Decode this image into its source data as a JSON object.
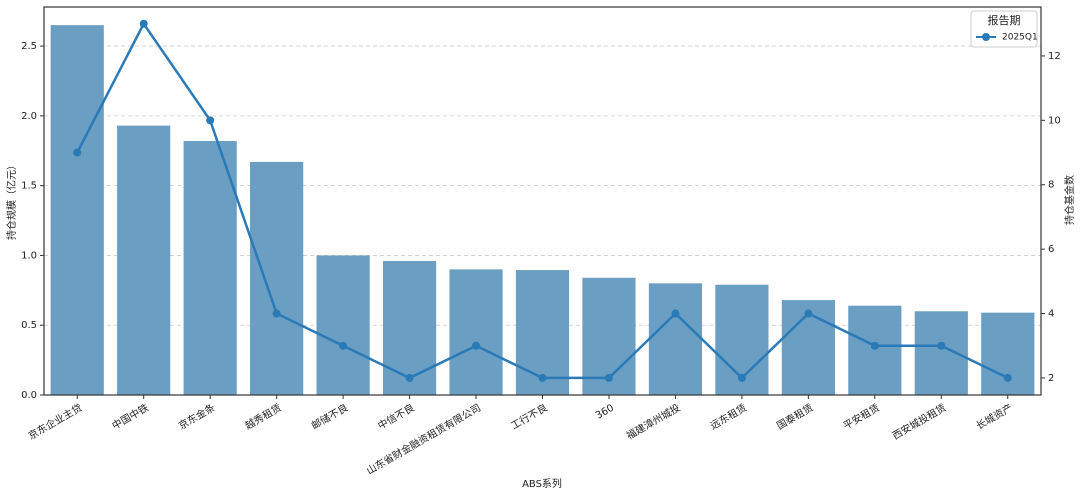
{
  "chart_data": {
    "type": "bar",
    "x_label": "ABS系列",
    "y_label": "持仓规模（亿元）",
    "y2_label": "持仓基金数",
    "legend_title": "报告期",
    "legend": "upper right",
    "grid": true,
    "categories": [
      "京东企业主贷",
      "中国中铁",
      "京东金条",
      "越秀租赁",
      "邮储不良",
      "中信不良",
      "山东省财金融资租赁有限公司",
      "工行不良",
      "360",
      "福建漳州城投",
      "远东租赁",
      "国泰租赁",
      "平安租赁",
      "西安城投租赁",
      "长城资产"
    ],
    "series": [
      {
        "color": "#6a9ec2",
        "values": [
          2.65,
          1.93,
          1.82,
          1.67,
          1.0,
          0.96,
          0.9,
          0.895,
          0.84,
          0.8,
          0.79,
          0.68,
          0.64,
          0.6,
          0.59
        ]
      },
      {
        "name": "2025Q1",
        "color": "#2a7ab8",
        "axis": "y2",
        "values": [
          9,
          13,
          10,
          4,
          3,
          2,
          3,
          2,
          2,
          4,
          2,
          4,
          3,
          3,
          2
        ]
      }
    ],
    "ylim": [
      0,
      2.78
    ],
    "yticks": [
      {
        "value": 0,
        "label": "0.0"
      },
      {
        "value": 0.5,
        "label": "0.5"
      },
      {
        "value": 1,
        "label": "1.0"
      },
      {
        "value": 1.5,
        "label": "1.5"
      },
      {
        "value": 2,
        "label": "2.0"
      },
      {
        "value": 2.5,
        "label": "2.5"
      }
    ],
    "y2lim": [
      1.47,
      13.52
    ],
    "y2ticks": [
      2,
      4,
      6,
      8,
      10,
      12
    ]
  }
}
